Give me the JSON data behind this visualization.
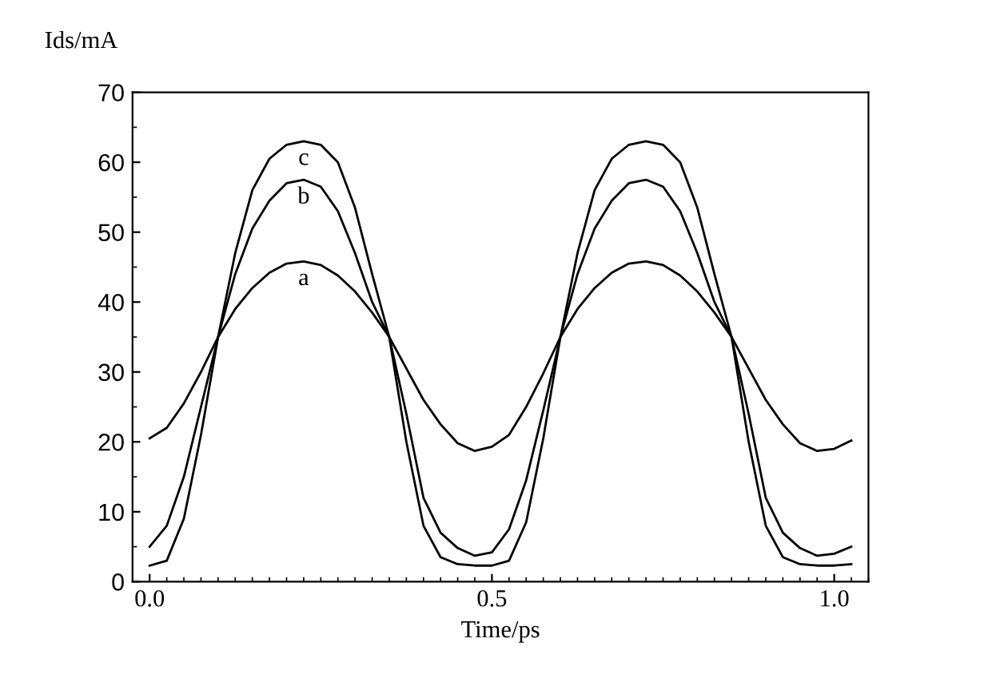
{
  "chart_data": {
    "type": "line",
    "xlabel": "Time/ps",
    "ylabel": "Ids/mA",
    "x": [
      0,
      0.025,
      0.05,
      0.075,
      0.1,
      0.125,
      0.15,
      0.175,
      0.2,
      0.225,
      0.25,
      0.275,
      0.3,
      0.325,
      0.35,
      0.375,
      0.4,
      0.425,
      0.45,
      0.475,
      0.5,
      0.525,
      0.55,
      0.575,
      0.6,
      0.625,
      0.65,
      0.675,
      0.7,
      0.725,
      0.75,
      0.775,
      0.8,
      0.825,
      0.85,
      0.875,
      0.9,
      0.925,
      0.95,
      0.975,
      1.0,
      1.025
    ],
    "series": [
      {
        "name": "a",
        "color": "#000000",
        "values": [
          20.5,
          22,
          25.5,
          30,
          35,
          39,
          42,
          44.2,
          45.5,
          45.8,
          45.3,
          43.8,
          41.5,
          38.5,
          35,
          30.5,
          26,
          22.5,
          19.8,
          18.7,
          19.3,
          21,
          25,
          29.8,
          35,
          39,
          42,
          44.2,
          45.5,
          45.8,
          45.3,
          43.8,
          41.5,
          38.5,
          35,
          30.5,
          26,
          22.5,
          19.8,
          18.7,
          19,
          20.2
        ]
      },
      {
        "name": "b",
        "color": "#000000",
        "values": [
          5,
          8,
          15,
          25,
          35,
          44,
          50.5,
          54.5,
          57,
          57.5,
          56.5,
          53,
          47,
          40,
          35,
          24,
          12,
          7,
          4.8,
          3.7,
          4.2,
          7.5,
          14.5,
          24.5,
          35,
          44,
          50.5,
          54.5,
          57,
          57.5,
          56.5,
          53,
          47,
          40,
          35,
          24,
          12,
          7,
          4.8,
          3.7,
          4,
          5
        ]
      },
      {
        "name": "c",
        "color": "#000000",
        "values": [
          2.3,
          3,
          9,
          21,
          35,
          47,
          56,
          60.5,
          62.5,
          63,
          62.5,
          60,
          53.5,
          44,
          35,
          20,
          8,
          3.5,
          2.5,
          2.3,
          2.3,
          3,
          8.5,
          20.5,
          35,
          47,
          56,
          60.5,
          62.5,
          63,
          62.5,
          60,
          53.5,
          44,
          35,
          20,
          8,
          3.5,
          2.5,
          2.3,
          2.3,
          2.5
        ]
      }
    ],
    "xlim": [
      -0.025,
      1.05
    ],
    "xticks": [
      {
        "value": 0,
        "label": "0.0"
      },
      {
        "value": 0.5,
        "label": "0.5"
      },
      {
        "value": 1.0,
        "label": "1.0"
      }
    ],
    "ylim": [
      0,
      70
    ],
    "yticks": [
      0,
      10,
      20,
      30,
      40,
      50,
      60,
      70
    ],
    "grid": false,
    "legend": false,
    "marker": "none",
    "line_style": "solid"
  }
}
